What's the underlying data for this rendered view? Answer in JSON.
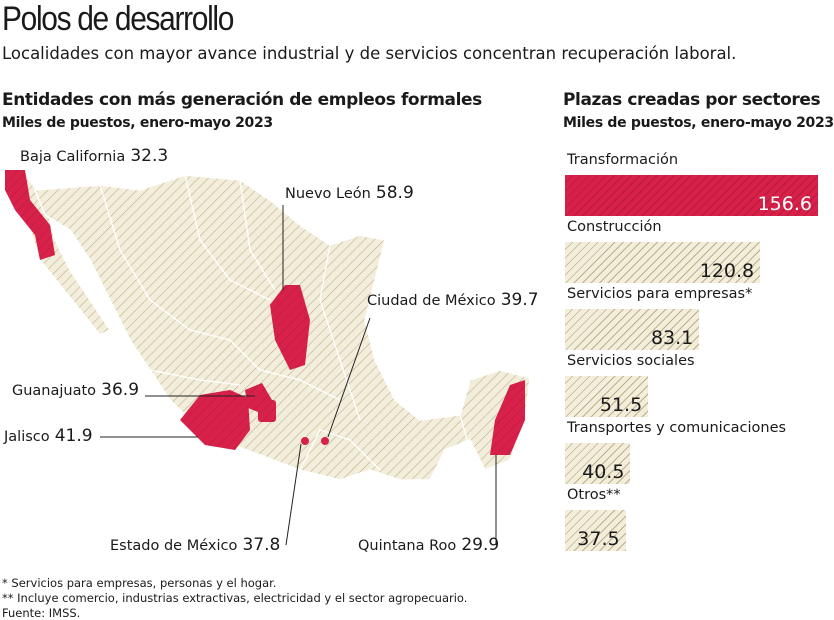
{
  "title": "Polos de desarrollo",
  "subtitle": "Localidades con mayor avance industrial y de servicios concentran recuperación laboral.",
  "map": {
    "heading": "Entidades con más generación de empleos formales",
    "subheading": "Miles de puestos, enero-mayo 2023",
    "highlight_color": "#d7204a",
    "base_color": "#f3eedb",
    "states": [
      {
        "name": "Baja California",
        "value": "32.3"
      },
      {
        "name": "Nuevo León",
        "value": "58.9"
      },
      {
        "name": "Ciudad de México",
        "value": "39.7"
      },
      {
        "name": "Guanajuato",
        "value": "36.9"
      },
      {
        "name": "Jalisco",
        "value": "41.9"
      },
      {
        "name": "Estado de México",
        "value": "37.8"
      },
      {
        "name": "Quintana Roo",
        "value": "29.9"
      }
    ]
  },
  "chart_data": {
    "type": "bar",
    "title": "Plazas creadas por sectores",
    "subtitle": "Miles de puestos, enero-mayo 2023",
    "categories": [
      "Transformación",
      "Construcción",
      "Servicios para empresas*",
      "Servicios sociales",
      "Transportes y comunicaciones",
      "Otros**"
    ],
    "values": [
      156.6,
      120.8,
      83.1,
      51.5,
      40.5,
      37.5
    ],
    "labels": [
      "156.6",
      "120.8",
      "83.1",
      "51.5",
      "40.5",
      "37.5"
    ],
    "colors": [
      "#d7204a",
      "#f3eedb",
      "#f3eedb",
      "#f3eedb",
      "#f3eedb",
      "#f3eedb"
    ],
    "orientation": "horizontal"
  },
  "footnotes": [
    "* Servicios para empresas, personas y el hogar.",
    "** Incluye comercio, industrias extractivas, electricidad y el sector agropecuario.",
    "Fuente: IMSS."
  ]
}
